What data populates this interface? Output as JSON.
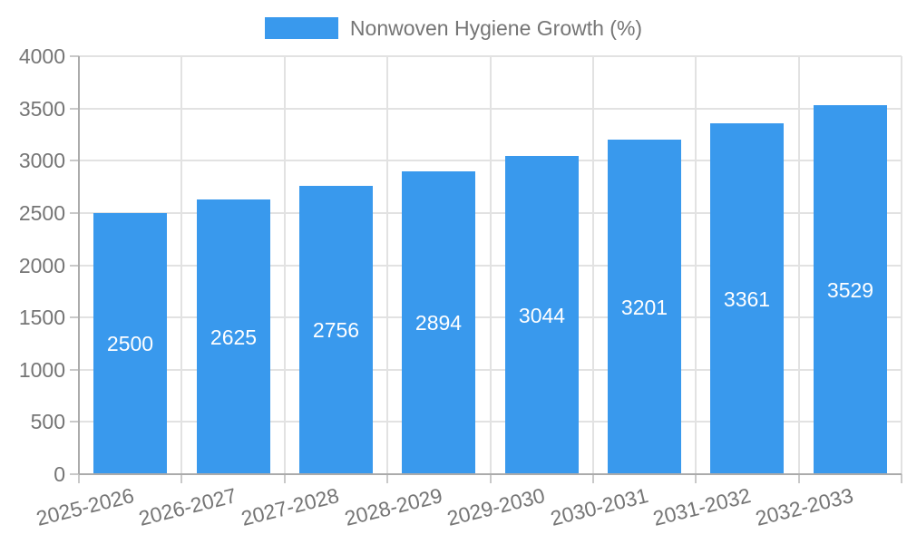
{
  "legend": {
    "label": "Nonwoven Hygiene Growth (%)"
  },
  "colors": {
    "bar": "#3999ED",
    "grid": "#E2E2E2",
    "axis": "#ABABAB",
    "tick": "#C9C9C9",
    "label_text": "#757575",
    "bar_label_text": "#FFFFFF",
    "background": "#FFFFFF"
  },
  "chart_data": {
    "type": "bar",
    "title": "Nonwoven Hygiene Growth (%)",
    "series": [
      {
        "name": "Nonwoven Hygiene Growth (%)",
        "values": [
          2500,
          2625,
          2756,
          2894,
          3044,
          3201,
          3361,
          3529
        ]
      }
    ],
    "categories": [
      "2025-2026",
      "2026-2027",
      "2027-2028",
      "2028-2029",
      "2029-2030",
      "2030-2031",
      "2031-2032",
      "2032-2033"
    ],
    "values": [
      2500,
      2625,
      2756,
      2894,
      3044,
      3201,
      3361,
      3529
    ],
    "bar_labels": [
      "2500",
      "2625",
      "2756",
      "2894",
      "3044",
      "3201",
      "3361",
      "3529"
    ],
    "xlabel": "",
    "ylabel": "",
    "ylim": [
      0,
      4000
    ],
    "yticks": [
      0,
      500,
      1000,
      1500,
      2000,
      2500,
      3000,
      3500,
      4000
    ],
    "grid": true,
    "legend_position": "top",
    "value_labels_inside_bars": true,
    "x_label_rotation_deg": -14
  }
}
